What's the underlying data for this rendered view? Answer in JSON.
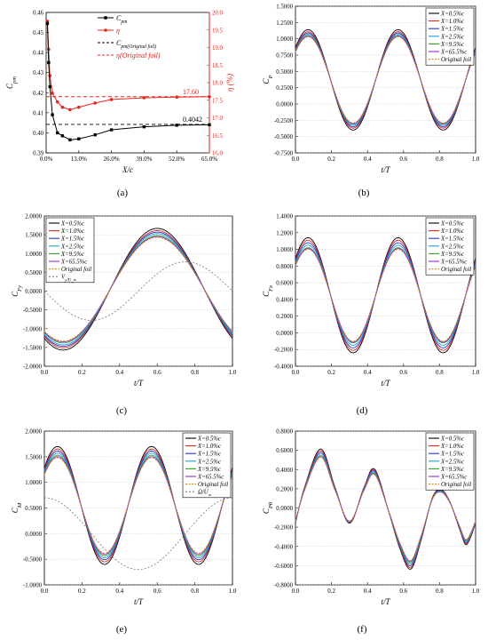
{
  "figure": {
    "panel_labels": [
      "(a)",
      "(b)",
      "(c)",
      "(d)",
      "(e)",
      "(f)"
    ]
  },
  "colors": {
    "black": "#000000",
    "red": "#e8261d",
    "blue": "#2535d8",
    "cyan": "#1e9fd0",
    "green": "#2a9f2a",
    "orange": "#f0a21a",
    "purple": "#9b2bd6",
    "original": "#d98a1e",
    "gray": "#7a7a7a"
  },
  "chart_data": [
    {
      "panel": "(a)",
      "type": "line",
      "xlabel": "X/c",
      "ylabel": "C_pm",
      "y2label": "η (%)",
      "x_ticks": [
        "0.0%",
        "13.0%",
        "26.0%",
        "39.0%",
        "52.0%",
        "65.0%"
      ],
      "xlim": [
        0,
        65
      ],
      "ylim": [
        0.39,
        0.46
      ],
      "y_ticks": [
        "0.39",
        "0.40",
        "0.41",
        "0.42",
        "0.43",
        "0.44",
        "0.45",
        "0.46"
      ],
      "y2lim": [
        16.0,
        20.0
      ],
      "y2_ticks": [
        "16.0",
        "16.5",
        "17.0",
        "17.5",
        "18.0",
        "18.5",
        "19.0",
        "19.5",
        "20.0"
      ],
      "legend": {
        "position": "top-right",
        "entries": [
          "C_pm",
          "η",
          "C_pm(Original foil)",
          "η(Original foil)"
        ]
      },
      "series": [
        {
          "name": "C_pm",
          "axis": "left",
          "x": [
            0.5,
            1.0,
            1.5,
            2.5,
            4.5,
            6.5,
            9.5,
            13.0,
            19.5,
            26.0,
            39.0,
            52.0,
            65.0
          ],
          "values": [
            0.4545,
            0.435,
            0.423,
            0.409,
            0.4,
            0.3985,
            0.3965,
            0.397,
            0.399,
            0.4015,
            0.403,
            0.4038,
            0.404
          ]
        },
        {
          "name": "η",
          "axis": "right",
          "x": [
            0.5,
            1.0,
            1.5,
            2.5,
            4.5,
            6.5,
            9.5,
            13.0,
            19.5,
            26.0,
            39.0,
            52.0,
            65.0
          ],
          "values": [
            19.75,
            18.95,
            18.2,
            17.7,
            17.45,
            17.3,
            17.23,
            17.3,
            17.42,
            17.52,
            17.57,
            17.59,
            17.6
          ]
        },
        {
          "name": "C_pm(Original foil)",
          "axis": "left",
          "constant": 0.4042
        },
        {
          "name": "η(Original foil)",
          "axis": "right",
          "constant": 17.6
        }
      ],
      "annotations": [
        "17.60",
        "0.4042"
      ]
    },
    {
      "panel": "(b)",
      "type": "line",
      "xlabel": "t/T",
      "ylabel": "C_P",
      "xlim": [
        0,
        1
      ],
      "x_ticks": [
        "0.0",
        "0.2",
        "0.4",
        "0.6",
        "0.8",
        "1.0"
      ],
      "ylim": [
        -0.75,
        1.5
      ],
      "y_ticks": [
        "-0.7500",
        "-0.5000",
        "-0.2500",
        "0.0000",
        "0.2500",
        "0.5000",
        "0.7500",
        "1.0000",
        "1.2500",
        "1.5000"
      ],
      "legend": {
        "position": "top-right",
        "entries": [
          "X=0.5%c",
          "X=1.0%c",
          "X=1.5%c",
          "X=2.5%c",
          "X=9.5%c",
          "X=65.5%c",
          "Original foil"
        ]
      },
      "curve": {
        "mean": 0.37,
        "amplitudes": [
          0.77,
          0.74,
          0.72,
          0.7,
          0.68,
          0.67,
          0.66
        ],
        "phase": 0.07,
        "harmonic": 2
      }
    },
    {
      "panel": "(c)",
      "type": "line",
      "xlabel": "t/T",
      "ylabel": "C_Fy",
      "xlim": [
        0,
        1
      ],
      "x_ticks": [
        "0.0",
        "0.2",
        "0.4",
        "0.6",
        "0.8",
        "1.0"
      ],
      "ylim": [
        -2.0,
        2.0
      ],
      "y_ticks": [
        "-2.0000",
        "-1.5000",
        "-1.0000",
        "-0.5000",
        "0.0000",
        "0.5000",
        "1.0000",
        "1.5000",
        "2.0000"
      ],
      "legend": {
        "position": "top-left",
        "entries": [
          "X=0.5%c",
          "X=1.0%c",
          "X=1.5%c",
          "X=2.5%c",
          "X=9.5%c",
          "X=65.5%c",
          "Original foil",
          "V_y/U_∞"
        ]
      },
      "curve": {
        "mean": 0.05,
        "amplitudes": [
          1.62,
          1.56,
          1.52,
          1.48,
          1.43,
          1.4,
          1.38
        ],
        "phase": 0.6,
        "harmonic": 1
      },
      "reference_curve": {
        "name": "V_y/U_∞",
        "amplitude": 0.78,
        "phase": 0.75
      }
    },
    {
      "panel": "(d)",
      "type": "line",
      "xlabel": "t/T",
      "ylabel": "C_Fx",
      "xlim": [
        0,
        1
      ],
      "x_ticks": [
        "0.0",
        "0.2",
        "0.4",
        "0.6",
        "0.8",
        "1.0"
      ],
      "ylim": [
        -0.4,
        1.4
      ],
      "y_ticks": [
        "-0.4000",
        "-0.2000",
        "0.0000",
        "0.2000",
        "0.4000",
        "0.6000",
        "0.8000",
        "1.0000",
        "1.2000",
        "1.4000"
      ],
      "legend": {
        "position": "top-right",
        "entries": [
          "X=0.5%c",
          "X=1.0%c",
          "X=1.5%c",
          "X=2.5%c",
          "X=9.5%c",
          "X=65.5%c",
          "Original foil"
        ]
      },
      "curve": {
        "mean": 0.45,
        "amplitudes": [
          0.69,
          0.66,
          0.63,
          0.6,
          0.57,
          0.56,
          0.55
        ],
        "phase": 0.07,
        "harmonic": 2
      }
    },
    {
      "panel": "(e)",
      "type": "line",
      "xlabel": "t/T",
      "ylabel": "C_M",
      "xlim": [
        0,
        1
      ],
      "x_ticks": [
        "0.0",
        "0.2",
        "0.4",
        "0.6",
        "0.8",
        "1.0"
      ],
      "ylim": [
        -1.0,
        2.0
      ],
      "y_ticks": [
        "-1.0000",
        "-0.5000",
        "0.0000",
        "0.5000",
        "1.0000",
        "1.5000",
        "2.0000"
      ],
      "legend": {
        "position": "top-right",
        "entries": [
          "X=0.5%c",
          "X=1.0%c",
          "X=1.5%c",
          "X=2.5%c",
          "X=9.5%c",
          "X=65.5%c",
          "Original foil",
          "Ω/U_∞"
        ]
      },
      "curve": {
        "mean": 0.55,
        "amplitudes": [
          1.15,
          1.1,
          1.06,
          1.02,
          0.98,
          0.95,
          0.93
        ],
        "phase": 0.07,
        "harmonic": 2
      },
      "reference_curve": {
        "name": "Ω/U_∞",
        "amplitude": 0.7,
        "phase": 0.0
      }
    },
    {
      "panel": "(f)",
      "type": "line",
      "xlabel": "t/T",
      "ylabel": "C_Pθ",
      "xlim": [
        0,
        1
      ],
      "x_ticks": [
        "0.0",
        "0.2",
        "0.4",
        "0.6",
        "0.8",
        "1.0"
      ],
      "ylim": [
        -0.8,
        0.8
      ],
      "y_ticks": [
        "-0.8000",
        "-0.6000",
        "-0.4000",
        "-0.2000",
        "0.0000",
        "0.2000",
        "0.4000",
        "0.6000",
        "0.8000"
      ],
      "legend": {
        "position": "top-right",
        "entries": [
          "X=0.5%c",
          "X=1.0%c",
          "X=1.5%c",
          "X=2.5%c",
          "X=9.5%c",
          "X=65.5%c",
          "Original foil"
        ]
      },
      "points": [
        [
          0,
          -0.15
        ],
        [
          0.05,
          0.2
        ],
        [
          0.14,
          0.58
        ],
        [
          0.22,
          0.2
        ],
        [
          0.3,
          -0.15
        ],
        [
          0.38,
          0.2
        ],
        [
          0.44,
          0.38
        ],
        [
          0.52,
          -0.05
        ],
        [
          0.58,
          -0.4
        ],
        [
          0.64,
          -0.6
        ],
        [
          0.7,
          -0.3
        ],
        [
          0.76,
          0.1
        ],
        [
          0.81,
          0.18
        ],
        [
          0.86,
          0.05
        ],
        [
          0.91,
          -0.2
        ],
        [
          0.95,
          -0.36
        ],
        [
          1.0,
          -0.15
        ]
      ],
      "scales": [
        1.06,
        1.03,
        1.0,
        0.97,
        0.94,
        0.92,
        0.91
      ]
    }
  ]
}
